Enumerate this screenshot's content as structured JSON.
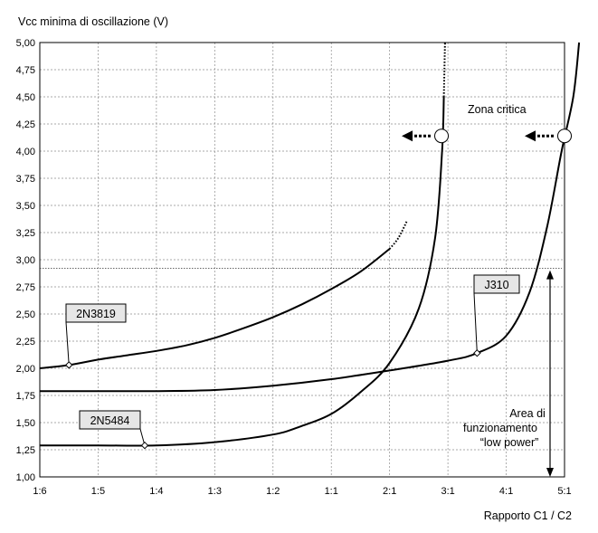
{
  "chart_data": {
    "type": "line",
    "ylabel": "Vcc minima di oscillazione  (V)",
    "xlabel": "Rapporto C1 / C2",
    "categories": [
      "1:6",
      "1:5",
      "1:4",
      "1:3",
      "1:2",
      "1:1",
      "2:1",
      "3:1",
      "4:1",
      "5:1"
    ],
    "yticks": [
      "1,00",
      "1,25",
      "1,50",
      "1,75",
      "2,00",
      "2,25",
      "2,50",
      "2,75",
      "3,00",
      "3,25",
      "3,50",
      "3,75",
      "4,00",
      "4,25",
      "4,50",
      "4,75",
      "5,00"
    ],
    "ylim": [
      1.0,
      5.0
    ],
    "grid": true,
    "reference_line": 2.92,
    "series": [
      {
        "name": "2N3819",
        "points": [
          [
            0,
            2.0
          ],
          [
            0.5,
            2.03
          ],
          [
            1,
            2.08
          ],
          [
            1.5,
            2.12
          ],
          [
            2,
            2.16
          ],
          [
            2.5,
            2.21
          ],
          [
            3,
            2.28
          ],
          [
            3.5,
            2.37
          ],
          [
            4,
            2.47
          ],
          [
            4.5,
            2.59
          ],
          [
            5,
            2.73
          ],
          [
            5.5,
            2.89
          ],
          [
            6,
            3.1
          ]
        ],
        "dotted": [
          [
            6,
            3.1
          ],
          [
            6.15,
            3.2
          ],
          [
            6.3,
            3.36
          ]
        ]
      },
      {
        "name": "J310",
        "points": [
          [
            0,
            1.79
          ],
          [
            1,
            1.79
          ],
          [
            2,
            1.79
          ],
          [
            3,
            1.8
          ],
          [
            4,
            1.84
          ],
          [
            5,
            1.9
          ],
          [
            6,
            1.98
          ],
          [
            7,
            2.07
          ],
          [
            7.5,
            2.14
          ],
          [
            8,
            2.3
          ],
          [
            8.4,
            2.7
          ],
          [
            8.7,
            3.3
          ],
          [
            8.95,
            4.0
          ],
          [
            9.15,
            4.5
          ],
          [
            9.25,
            5.0
          ]
        ]
      },
      {
        "name": "2N5484",
        "points": [
          [
            0,
            1.29
          ],
          [
            1,
            1.29
          ],
          [
            2,
            1.29
          ],
          [
            3,
            1.32
          ],
          [
            4,
            1.39
          ],
          [
            4.5,
            1.47
          ],
          [
            5,
            1.58
          ],
          [
            5.5,
            1.78
          ],
          [
            6,
            2.05
          ],
          [
            6.5,
            2.55
          ],
          [
            6.78,
            3.2
          ],
          [
            6.9,
            4.0
          ],
          [
            6.93,
            4.5
          ]
        ],
        "dotted": [
          [
            6.93,
            4.5
          ],
          [
            6.94,
            4.75
          ],
          [
            6.95,
            5.0
          ]
        ]
      }
    ],
    "annotations": {
      "critical_zone": "Zona critica",
      "low_power_area": [
        "Area di",
        "funzionamento",
        "“low power”"
      ]
    }
  },
  "style": {
    "grid_color": "#8c8c8c",
    "curve_color": "#000000",
    "callout_bg": "#e6e6e6"
  }
}
